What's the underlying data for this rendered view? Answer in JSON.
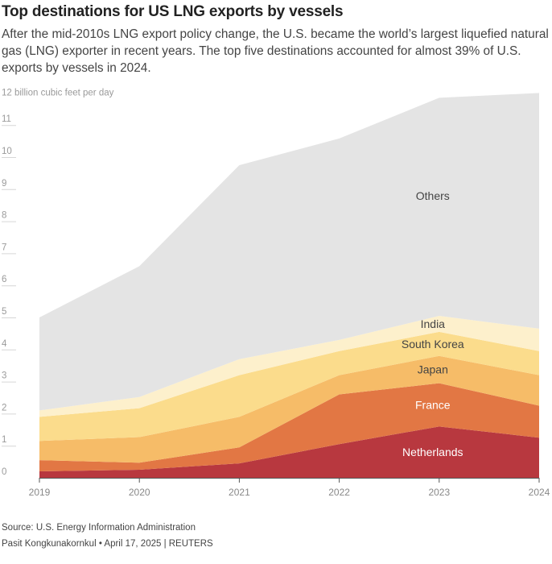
{
  "title": "Top destinations for US LNG exports by vessels",
  "subtitle": "After the mid-2010s LNG export policy change, the U.S. became the world’s largest liquefied natural gas (LNG) exporter in recent years. The top five destinations accounted for almost 39% of U.S. exports by vessels in 2024.",
  "source": "Source: U.S. Energy Information Administration",
  "credit": "Pasit Kongkunakornkul • April 17, 2025 | REUTERS",
  "chart_data": {
    "type": "area",
    "stacked": true,
    "x": [
      "2019",
      "2020",
      "2021",
      "2022",
      "2023",
      "2024"
    ],
    "ylabel": "12 billion cubic feet per day",
    "ylim": [
      0,
      12
    ],
    "yticks": [
      "0",
      "1",
      "2",
      "3",
      "4",
      "5",
      "6",
      "7",
      "8",
      "9",
      "10",
      "11"
    ],
    "grid": true,
    "series": [
      {
        "name": "Netherlands",
        "color": "#b8383f",
        "values": [
          0.2,
          0.25,
          0.45,
          1.05,
          1.6,
          1.25
        ]
      },
      {
        "name": "France",
        "color": "#e27744",
        "values": [
          0.35,
          0.22,
          0.5,
          1.55,
          1.35,
          1.0
        ]
      },
      {
        "name": "Japan",
        "color": "#f6bc68",
        "values": [
          0.6,
          0.8,
          0.95,
          0.6,
          0.85,
          0.95
        ]
      },
      {
        "name": "South Korea",
        "color": "#fbdc8c",
        "values": [
          0.75,
          0.9,
          1.3,
          0.75,
          0.75,
          0.75
        ]
      },
      {
        "name": "India",
        "color": "#fdf0cc",
        "values": [
          0.2,
          0.35,
          0.5,
          0.35,
          0.5,
          0.7
        ]
      },
      {
        "name": "Others",
        "color": "#e4e4e4",
        "values": [
          2.9,
          4.08,
          6.05,
          6.28,
          6.8,
          7.35
        ]
      }
    ]
  }
}
